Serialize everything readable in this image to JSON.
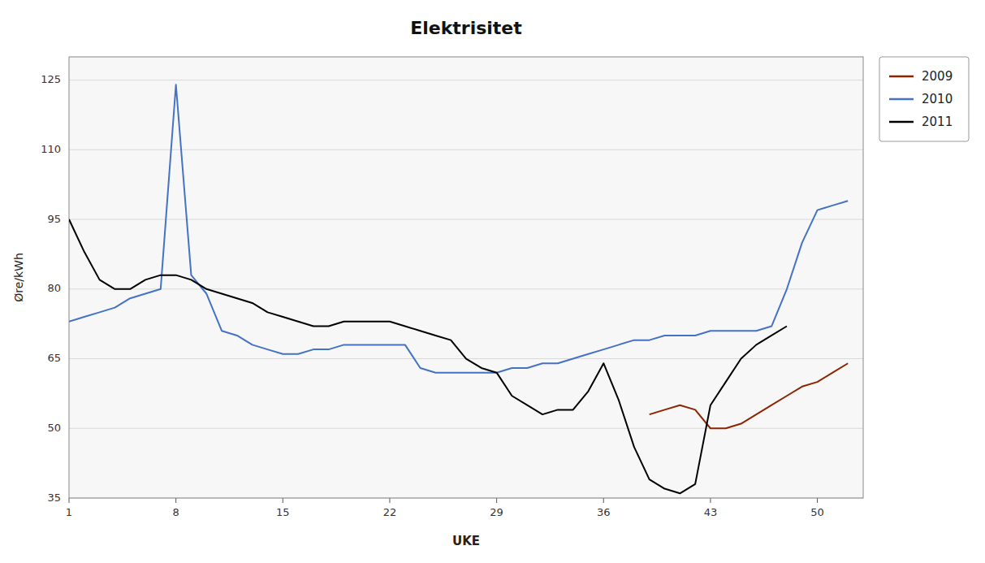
{
  "chart_data": {
    "type": "line",
    "title": "Elektrisitet",
    "x_label": "UKE",
    "y_label": "Øre/kWh",
    "xlim": [
      1,
      53
    ],
    "xticks": [
      1,
      8,
      15,
      22,
      29,
      36,
      43,
      50
    ],
    "ylim": [
      35,
      130
    ],
    "yticks": [
      35,
      50,
      65,
      80,
      95,
      110,
      125
    ],
    "grid": true,
    "legend": "right",
    "series": [
      {
        "name": "2009",
        "color": "#8B2500",
        "x": [
          39,
          40,
          41,
          42,
          43,
          44,
          45,
          46,
          47,
          48,
          49,
          50,
          51,
          52
        ],
        "values": [
          53,
          54,
          55,
          54,
          50,
          50,
          51,
          53,
          55,
          57,
          59,
          60,
          62,
          64
        ]
      },
      {
        "name": "2010",
        "color": "#4472C4",
        "x": [
          1,
          2,
          3,
          4,
          5,
          6,
          7,
          8,
          9,
          10,
          11,
          12,
          13,
          14,
          15,
          16,
          17,
          18,
          19,
          20,
          21,
          22,
          23,
          24,
          25,
          26,
          27,
          28,
          29,
          30,
          31,
          32,
          33,
          34,
          35,
          36,
          37,
          38,
          39,
          40,
          41,
          42,
          43,
          44,
          45,
          46,
          47,
          48,
          49,
          50,
          51,
          52
        ],
        "values": [
          73,
          74,
          75,
          76,
          78,
          79,
          80,
          124,
          83,
          79,
          71,
          70,
          68,
          67,
          66,
          66,
          67,
          67,
          68,
          68,
          68,
          68,
          68,
          63,
          62,
          62,
          62,
          62,
          62,
          63,
          63,
          64,
          64,
          65,
          66,
          67,
          68,
          69,
          69,
          70,
          70,
          70,
          71,
          71,
          71,
          71,
          72,
          80,
          90,
          97,
          98,
          99
        ]
      },
      {
        "name": "2011",
        "color": "#000000",
        "x": [
          1,
          2,
          3,
          4,
          5,
          6,
          7,
          8,
          9,
          10,
          11,
          12,
          13,
          14,
          15,
          16,
          17,
          18,
          19,
          20,
          21,
          22,
          23,
          24,
          25,
          26,
          27,
          28,
          29,
          30,
          31,
          32,
          33,
          34,
          35,
          36,
          37,
          38,
          39,
          40,
          41,
          42,
          43,
          44,
          45,
          46,
          47,
          48
        ],
        "values": [
          95,
          88,
          82,
          80,
          80,
          82,
          83,
          83,
          82,
          80,
          79,
          78,
          77,
          75,
          74,
          73,
          72,
          72,
          73,
          73,
          73,
          73,
          72,
          71,
          70,
          69,
          65,
          63,
          62,
          57,
          55,
          53,
          54,
          54,
          58,
          64,
          56,
          46,
          39,
          37,
          36,
          38,
          55,
          60,
          65,
          68,
          70,
          72
        ]
      }
    ]
  }
}
